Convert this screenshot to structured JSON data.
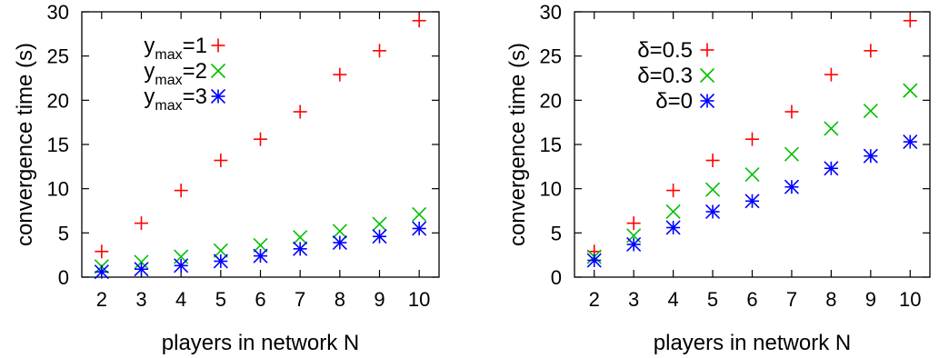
{
  "chart_data": [
    {
      "type": "scatter",
      "xlabel": "players in network N",
      "ylabel": "convergence time (s)",
      "xlim": [
        1.5,
        10.5
      ],
      "ylim": [
        0,
        30
      ],
      "xticks": [
        2,
        3,
        4,
        5,
        6,
        7,
        8,
        9,
        10
      ],
      "yticks": [
        0,
        5,
        10,
        15,
        20,
        25,
        30
      ],
      "legend_position": "top-left",
      "series": [
        {
          "name": "y",
          "name_sub": "max",
          "name_suffix": "=1",
          "marker": "plus",
          "color": "#ff0000",
          "x": [
            2,
            3,
            4,
            5,
            6,
            7,
            8,
            9,
            10
          ],
          "y": [
            2.9,
            6.1,
            9.8,
            13.2,
            15.6,
            18.7,
            22.9,
            25.6,
            29.0
          ]
        },
        {
          "name": "y",
          "name_sub": "max",
          "name_suffix": "=2",
          "marker": "cross",
          "color": "#00c000",
          "x": [
            2,
            3,
            4,
            5,
            6,
            7,
            8,
            9,
            10
          ],
          "y": [
            1.2,
            1.7,
            2.3,
            3.0,
            3.6,
            4.5,
            5.2,
            6.0,
            7.1
          ]
        },
        {
          "name": "y",
          "name_sub": "max",
          "name_suffix": "=3",
          "marker": "star",
          "color": "#0000ff",
          "x": [
            2,
            3,
            4,
            5,
            6,
            7,
            8,
            9,
            10
          ],
          "y": [
            0.6,
            0.9,
            1.3,
            1.8,
            2.4,
            3.2,
            3.9,
            4.6,
            5.5
          ]
        }
      ]
    },
    {
      "type": "scatter",
      "xlabel": "players in network N",
      "ylabel": "convergence time (s)",
      "xlim": [
        1.5,
        10.5
      ],
      "ylim": [
        0,
        30
      ],
      "xticks": [
        2,
        3,
        4,
        5,
        6,
        7,
        8,
        9,
        10
      ],
      "yticks": [
        0,
        5,
        10,
        15,
        20,
        25,
        30
      ],
      "legend_position": "top-left",
      "series": [
        {
          "name": "δ=0.5",
          "marker": "plus",
          "color": "#ff0000",
          "x": [
            2,
            3,
            4,
            5,
            6,
            7,
            8,
            9,
            10
          ],
          "y": [
            2.9,
            6.1,
            9.8,
            13.2,
            15.6,
            18.7,
            22.9,
            25.6,
            29.0
          ]
        },
        {
          "name": "δ=0.3",
          "marker": "cross",
          "color": "#00c000",
          "x": [
            2,
            3,
            4,
            5,
            6,
            7,
            8,
            9,
            10
          ],
          "y": [
            2.3,
            4.7,
            7.4,
            9.9,
            11.6,
            13.9,
            16.8,
            18.8,
            21.1
          ]
        },
        {
          "name": "δ=0",
          "marker": "star",
          "color": "#0000ff",
          "x": [
            2,
            3,
            4,
            5,
            6,
            7,
            8,
            9,
            10
          ],
          "y": [
            1.9,
            3.7,
            5.6,
            7.4,
            8.6,
            10.2,
            12.3,
            13.7,
            15.3
          ]
        }
      ]
    }
  ]
}
